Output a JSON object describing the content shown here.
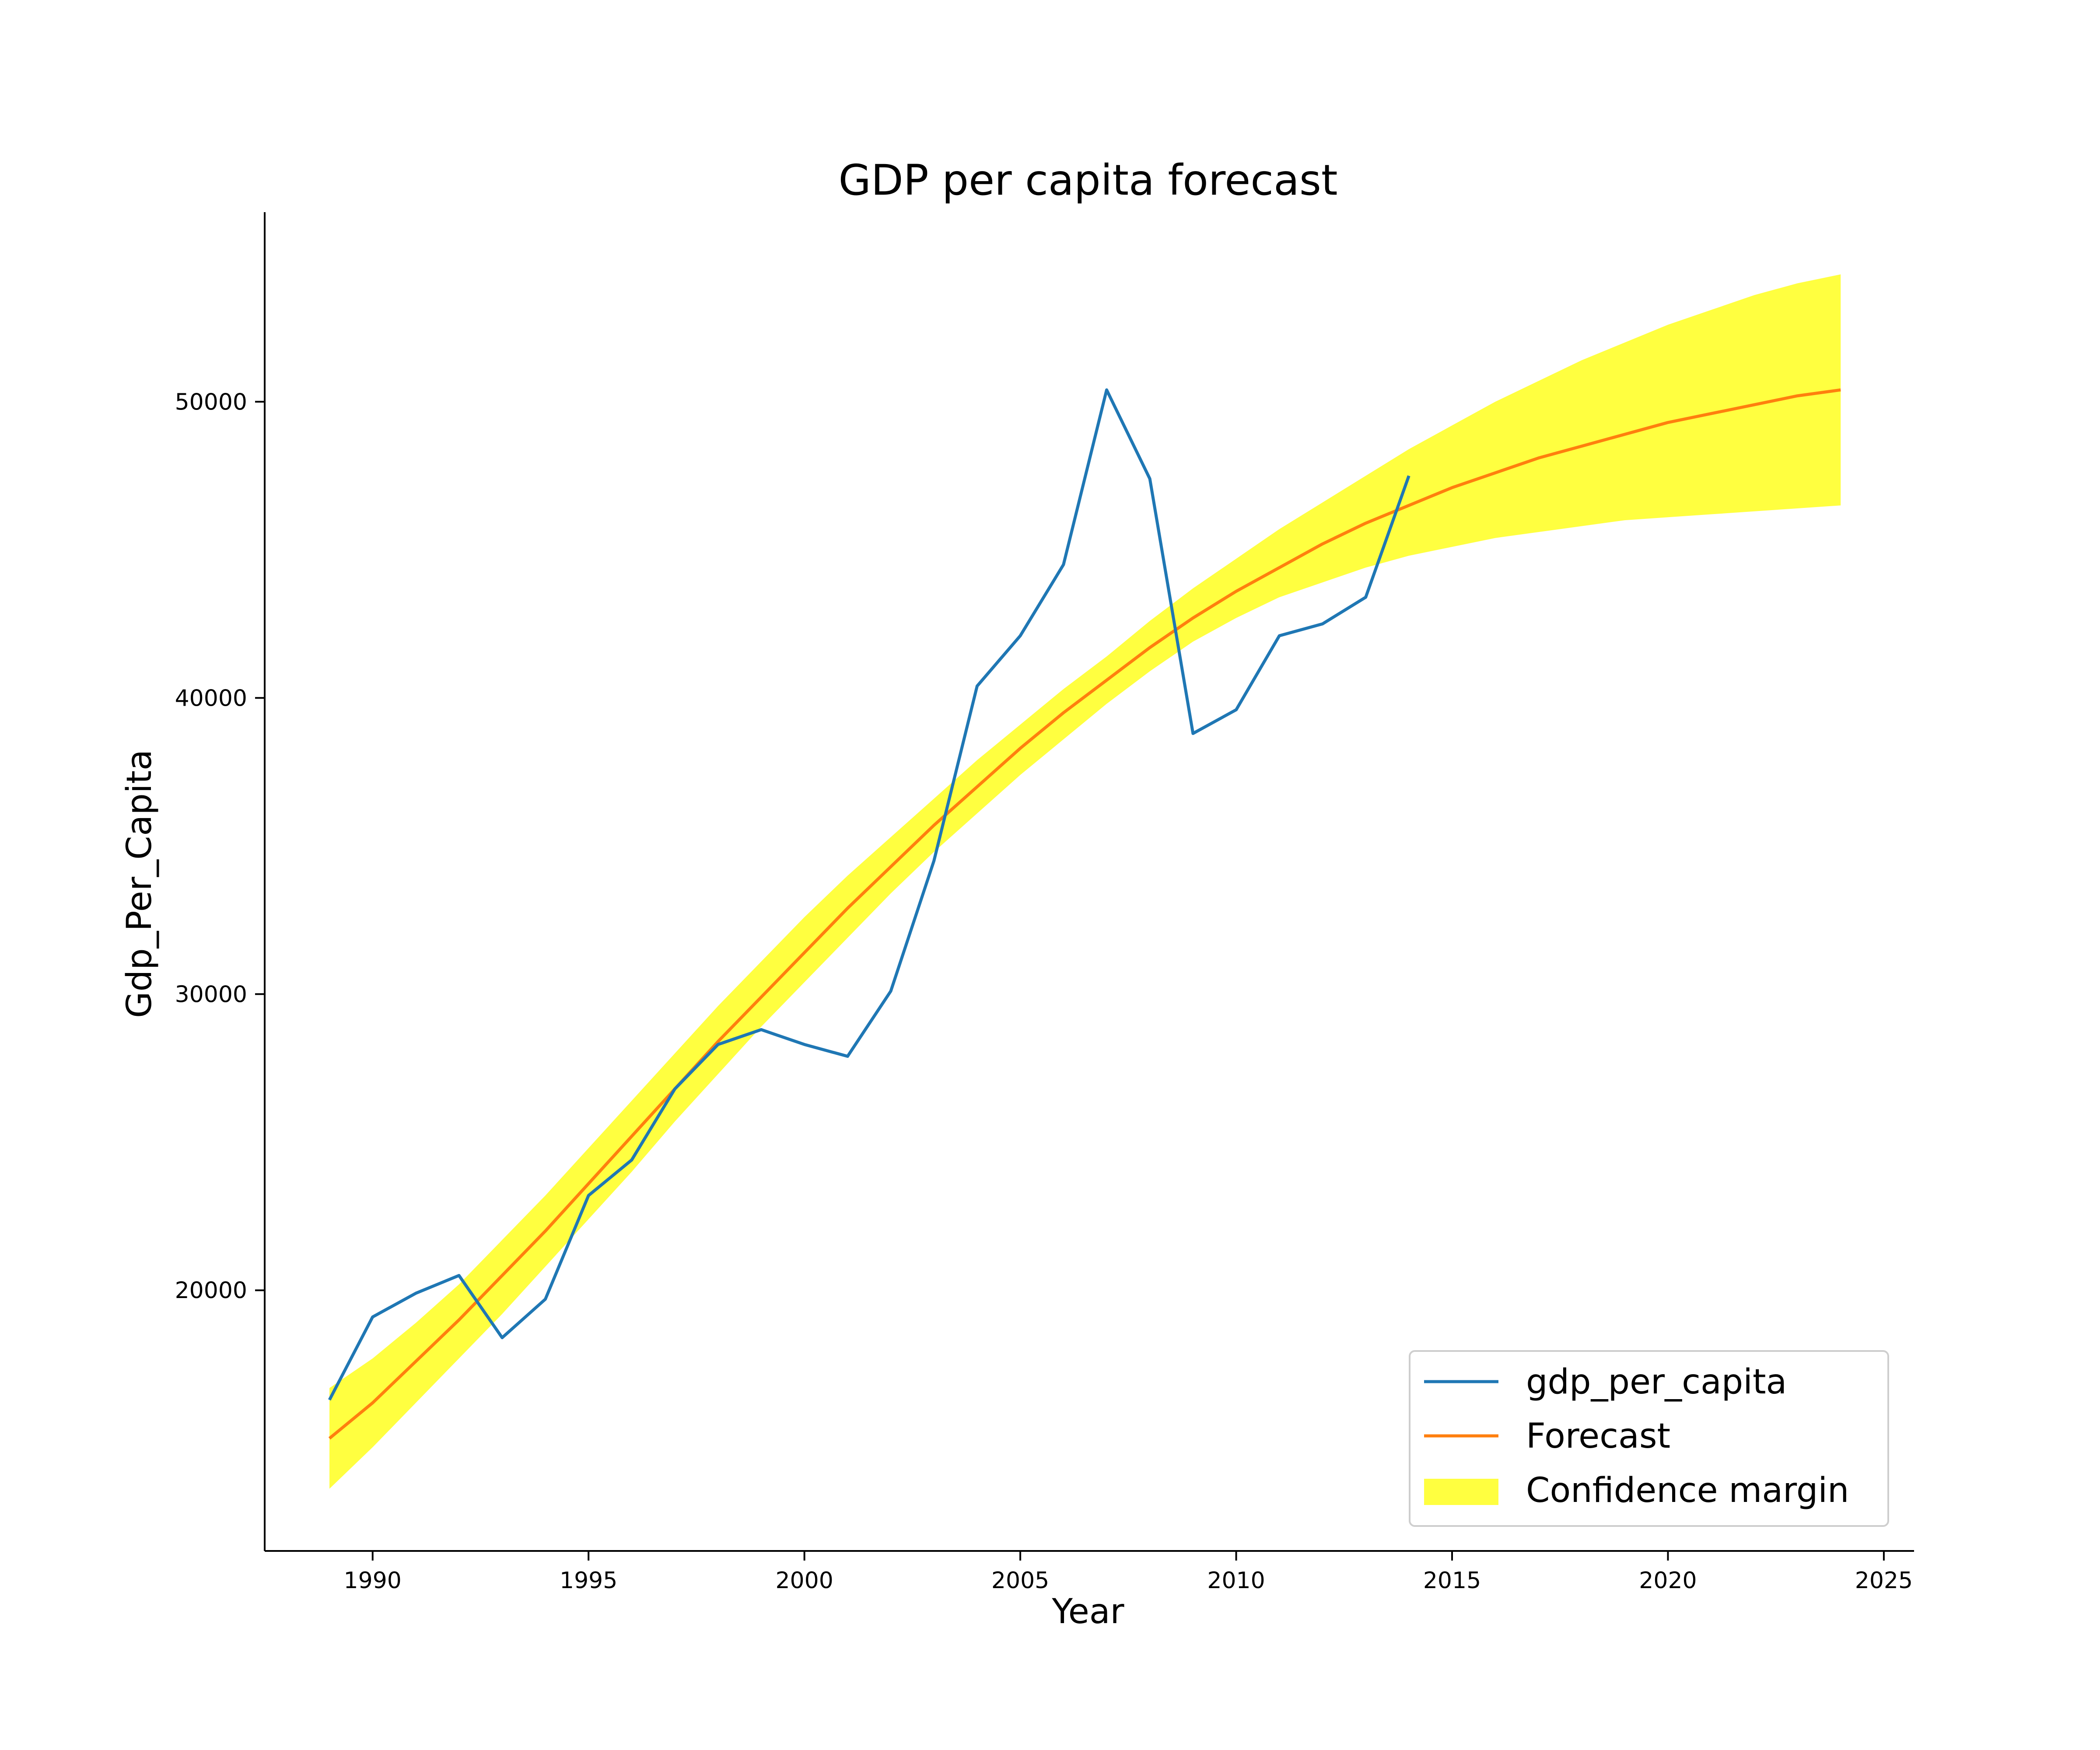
{
  "chart_data": {
    "type": "line",
    "title": "GDP per capita forecast",
    "xlabel": "Year",
    "ylabel": "Gdp_Per_Capita",
    "xlim": [
      1987.5,
      2025.7
    ],
    "ylim": [
      11200,
      56400
    ],
    "x_ticks": [
      1990,
      1995,
      2000,
      2005,
      2010,
      2015,
      2020,
      2025
    ],
    "y_ticks": [
      20000,
      30000,
      40000,
      50000
    ],
    "grid": false,
    "legend_position": "bottom-right",
    "colors": {
      "gdp_per_capita": "#1f77b4",
      "forecast": "#ff7f0e",
      "confidence": "#ffff00"
    },
    "series": [
      {
        "name": "gdp_per_capita",
        "type": "line",
        "x": [
          1989,
          1990,
          1991,
          1992,
          1993,
          1994,
          1995,
          1996,
          1997,
          1998,
          1999,
          2000,
          2001,
          2002,
          2003,
          2004,
          2005,
          2006,
          2007,
          2008,
          2009,
          2010,
          2011,
          2012,
          2013,
          2014
        ],
        "y": [
          16300,
          19100,
          19900,
          20500,
          18400,
          19700,
          23200,
          24400,
          26800,
          28300,
          28800,
          28300,
          27900,
          30100,
          34500,
          40400,
          42100,
          44500,
          50400,
          47400,
          38800,
          39600,
          42100,
          42500,
          43400,
          47500
        ]
      },
      {
        "name": "Forecast",
        "type": "line",
        "x": [
          1989,
          1990,
          1991,
          1992,
          1993,
          1994,
          1995,
          1996,
          1997,
          1998,
          1999,
          2000,
          2001,
          2002,
          2003,
          2004,
          2005,
          2006,
          2007,
          2008,
          2009,
          2010,
          2011,
          2012,
          2013,
          2014,
          2015,
          2016,
          2017,
          2018,
          2019,
          2020,
          2021,
          2022,
          2023,
          2024
        ],
        "y": [
          15000,
          16200,
          17600,
          19000,
          20500,
          22000,
          23600,
          25200,
          26800,
          28400,
          29900,
          31400,
          32900,
          34300,
          35700,
          37000,
          38300,
          39500,
          40600,
          41700,
          42700,
          43600,
          44400,
          45200,
          45900,
          46500,
          47100,
          47600,
          48100,
          48500,
          48900,
          49300,
          49600,
          49900,
          50200,
          50400
        ]
      },
      {
        "name": "Confidence margin",
        "type": "band",
        "x": [
          1989,
          1990,
          1991,
          1992,
          1993,
          1994,
          1995,
          1996,
          1997,
          1998,
          1999,
          2000,
          2001,
          2002,
          2003,
          2004,
          2005,
          2006,
          2007,
          2008,
          2009,
          2010,
          2011,
          2012,
          2013,
          2014,
          2015,
          2016,
          2017,
          2018,
          2019,
          2020,
          2021,
          2022,
          2023,
          2024
        ],
        "lower": [
          13300,
          14700,
          16200,
          17700,
          19200,
          20800,
          22400,
          24000,
          25700,
          27300,
          28900,
          30400,
          31900,
          33400,
          34800,
          36100,
          37400,
          38600,
          39800,
          40900,
          41900,
          42700,
          43400,
          43900,
          44400,
          44800,
          45100,
          45400,
          45600,
          45800,
          46000,
          46100,
          46200,
          46300,
          46400,
          46500
        ],
        "upper": [
          16700,
          17700,
          18900,
          20200,
          21700,
          23200,
          24800,
          26400,
          28000,
          29600,
          31100,
          32600,
          34000,
          35300,
          36600,
          37900,
          39100,
          40300,
          41400,
          42600,
          43700,
          44700,
          45700,
          46600,
          47500,
          48400,
          49200,
          50000,
          50700,
          51400,
          52000,
          52600,
          53100,
          53600,
          54000,
          54300
        ]
      }
    ],
    "legend": [
      "gdp_per_capita",
      "Forecast",
      "Confidence margin"
    ]
  }
}
